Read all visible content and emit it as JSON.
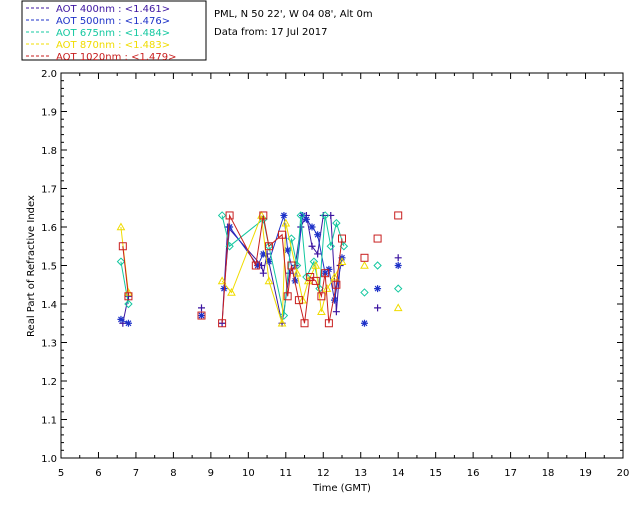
{
  "chart_data": {
    "type": "scatter",
    "title": "PML, N 50 22', W 04 08', Alt 0m",
    "subtitle": "Data from: 17 Jul 2017",
    "xlabel": "Time (GMT)",
    "ylabel": "Real Part of Refractive Index",
    "xlim": [
      5,
      20
    ],
    "ylim": [
      1.0,
      2.0
    ],
    "xticks": [
      "5",
      "6",
      "7",
      "8",
      "9",
      "10",
      "11",
      "12",
      "13",
      "14",
      "15",
      "16",
      "17",
      "18",
      "19",
      "20"
    ],
    "yticks": [
      "1.0",
      "1.1",
      "1.2",
      "1.3",
      "1.4",
      "1.5",
      "1.6",
      "1.7",
      "1.8",
      "1.9",
      "2.0"
    ],
    "grid": false,
    "legend_position": "top-left",
    "series": [
      {
        "name": "AOT 400nm : <1.461>",
        "color": "#3c14a0",
        "marker": "plus",
        "segments": [
          [
            [
              6.65,
              1.35
            ],
            [
              6.8,
              1.42
            ]
          ],
          [
            [
              8.75,
              1.39
            ]
          ],
          [
            [
              9.3,
              1.35
            ],
            [
              9.45,
              1.6
            ],
            [
              10.35,
              1.5
            ],
            [
              10.4,
              1.48
            ],
            [
              10.5,
              1.53
            ],
            [
              10.9,
              1.35
            ],
            [
              11.1,
              1.48
            ],
            [
              11.25,
              1.5
            ],
            [
              11.4,
              1.6
            ],
            [
              11.55,
              1.63
            ],
            [
              11.7,
              1.55
            ],
            [
              11.85,
              1.53
            ],
            [
              12.0,
              1.63
            ],
            [
              12.2,
              1.63
            ],
            [
              12.35,
              1.38
            ],
            [
              12.45,
              1.5
            ]
          ],
          [
            [
              13.45,
              1.39
            ]
          ],
          [
            [
              14.0,
              1.52
            ]
          ]
        ]
      },
      {
        "name": "AOT 500nm : <1.476>",
        "color": "#1e32c8",
        "marker": "star",
        "segments": [
          [
            [
              6.6,
              1.36
            ],
            [
              6.8,
              1.35
            ]
          ],
          [
            [
              8.75,
              1.37
            ]
          ],
          [
            [
              9.35,
              1.44
            ],
            [
              9.5,
              1.6
            ],
            [
              10.25,
              1.5
            ],
            [
              10.4,
              1.53
            ],
            [
              10.55,
              1.51
            ],
            [
              10.95,
              1.63
            ],
            [
              11.05,
              1.54
            ],
            [
              11.25,
              1.46
            ],
            [
              11.45,
              1.63
            ],
            [
              11.55,
              1.62
            ],
            [
              11.7,
              1.6
            ],
            [
              11.85,
              1.58
            ],
            [
              12.05,
              1.48
            ],
            [
              12.15,
              1.49
            ],
            [
              12.3,
              1.41
            ],
            [
              12.5,
              1.52
            ]
          ],
          [
            [
              13.1,
              1.35
            ]
          ],
          [
            [
              13.45,
              1.44
            ]
          ],
          [
            [
              14.0,
              1.5
            ]
          ]
        ]
      },
      {
        "name": "AOT 675nm : <1.484>",
        "color": "#14c8a0",
        "marker": "diamond",
        "segments": [
          [
            [
              6.6,
              1.51
            ],
            [
              6.8,
              1.4
            ]
          ],
          [
            [
              9.3,
              1.63
            ],
            [
              9.5,
              1.55
            ],
            [
              10.4,
              1.62
            ],
            [
              10.55,
              1.55
            ],
            [
              10.95,
              1.37
            ],
            [
              11.15,
              1.57
            ],
            [
              11.3,
              1.5
            ],
            [
              11.4,
              1.63
            ],
            [
              11.55,
              1.47
            ],
            [
              11.75,
              1.51
            ],
            [
              11.9,
              1.44
            ],
            [
              12.05,
              1.63
            ],
            [
              12.2,
              1.55
            ],
            [
              12.35,
              1.61
            ],
            [
              12.55,
              1.55
            ]
          ],
          [
            [
              13.1,
              1.43
            ]
          ],
          [
            [
              13.45,
              1.5
            ]
          ],
          [
            [
              14.0,
              1.44
            ]
          ]
        ]
      },
      {
        "name": "AOT 870nm : <1.483>",
        "color": "#f0dc00",
        "marker": "triangle",
        "segments": [
          [
            [
              6.6,
              1.6
            ],
            [
              6.8,
              1.43
            ]
          ],
          [
            [
              9.3,
              1.46
            ],
            [
              9.55,
              1.43
            ],
            [
              10.35,
              1.63
            ],
            [
              10.55,
              1.46
            ],
            [
              10.9,
              1.35
            ],
            [
              11.0,
              1.61
            ],
            [
              11.3,
              1.48
            ],
            [
              11.45,
              1.41
            ],
            [
              11.6,
              1.46
            ],
            [
              11.8,
              1.5
            ],
            [
              11.95,
              1.38
            ],
            [
              12.1,
              1.44
            ],
            [
              12.3,
              1.47
            ],
            [
              12.5,
              1.51
            ]
          ],
          [
            [
              13.1,
              1.5
            ]
          ],
          [
            [
              14.0,
              1.39
            ]
          ]
        ]
      },
      {
        "name": "AOT 1020nm : <1.479>",
        "color": "#c81e1e",
        "marker": "square",
        "segments": [
          [
            [
              6.65,
              1.55
            ],
            [
              6.8,
              1.42
            ]
          ],
          [
            [
              8.75,
              1.37
            ]
          ],
          [
            [
              9.3,
              1.35
            ],
            [
              9.5,
              1.63
            ],
            [
              10.2,
              1.5
            ],
            [
              10.4,
              1.63
            ],
            [
              10.55,
              1.55
            ],
            [
              10.9,
              1.58
            ],
            [
              11.05,
              1.42
            ],
            [
              11.15,
              1.5
            ],
            [
              11.35,
              1.41
            ],
            [
              11.5,
              1.35
            ],
            [
              11.65,
              1.47
            ],
            [
              11.8,
              1.46
            ],
            [
              11.95,
              1.42
            ],
            [
              12.05,
              1.48
            ],
            [
              12.15,
              1.35
            ],
            [
              12.35,
              1.45
            ],
            [
              12.5,
              1.57
            ]
          ],
          [
            [
              13.1,
              1.52
            ]
          ],
          [
            [
              13.45,
              1.57
            ]
          ],
          [
            [
              14.0,
              1.63
            ]
          ]
        ]
      }
    ]
  }
}
